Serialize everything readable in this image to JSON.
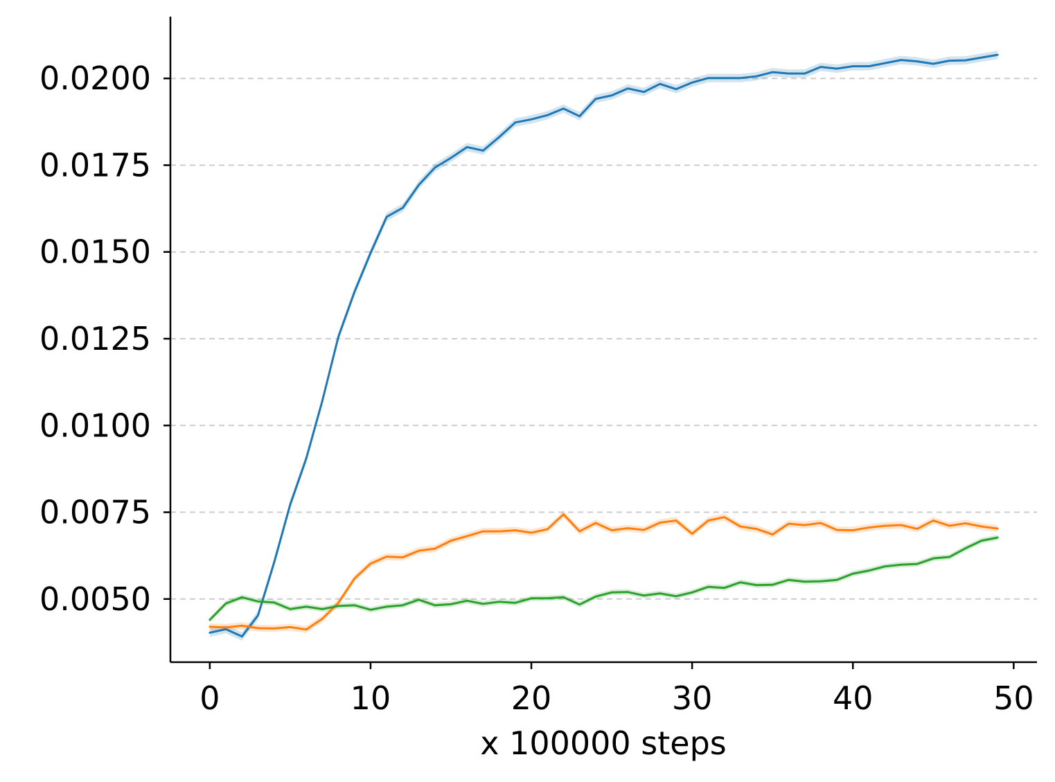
{
  "chart_data": {
    "type": "line",
    "title": "",
    "xlabel": "x 100000 steps",
    "ylabel": "",
    "xlim": [
      -2.45,
      51.45
    ],
    "ylim": [
      0.00318,
      0.02178
    ],
    "xticks": [
      0,
      10,
      20,
      30,
      40,
      50
    ],
    "xtick_labels": [
      "0",
      "10",
      "20",
      "30",
      "40",
      "50"
    ],
    "yticks": [
      0.005,
      0.0075,
      0.01,
      0.0125,
      0.015,
      0.0175,
      0.02
    ],
    "ytick_labels": [
      "0.0050",
      "0.0075",
      "0.0100",
      "0.0125",
      "0.0150",
      "0.0175",
      "0.0200"
    ],
    "grid": "horizontal dashed",
    "legend": "none",
    "x": [
      0,
      1,
      2,
      3,
      4,
      5,
      6,
      7,
      8,
      9,
      10,
      11,
      12,
      13,
      14,
      15,
      16,
      17,
      18,
      19,
      20,
      21,
      22,
      23,
      24,
      25,
      26,
      27,
      28,
      29,
      30,
      31,
      32,
      33,
      34,
      35,
      36,
      37,
      38,
      39,
      40,
      41,
      42,
      43,
      44,
      45,
      46,
      47,
      48,
      49
    ],
    "series": [
      {
        "color": "#1f77b4",
        "band_width": 0.00012,
        "values": [
          0.00403,
          0.00413,
          0.00392,
          0.00453,
          0.00605,
          0.00772,
          0.00905,
          0.01071,
          0.01256,
          0.01385,
          0.01497,
          0.01601,
          0.01627,
          0.01693,
          0.01743,
          0.01771,
          0.01802,
          0.01792,
          0.01831,
          0.01873,
          0.01882,
          0.01894,
          0.01913,
          0.01891,
          0.01941,
          0.01951,
          0.01971,
          0.01961,
          0.01984,
          0.01969,
          0.01988,
          0.02001,
          0.02001,
          0.02001,
          0.02006,
          0.02018,
          0.02014,
          0.02014,
          0.02033,
          0.02028,
          0.02035,
          0.02035,
          0.02044,
          0.02053,
          0.02049,
          0.02042,
          0.02051,
          0.02052,
          0.0206,
          0.02068
        ]
      },
      {
        "color": "#ff7f0e",
        "band_width": 0.0001,
        "values": [
          0.0042,
          0.00418,
          0.00423,
          0.00416,
          0.00415,
          0.00419,
          0.00412,
          0.00443,
          0.00489,
          0.00559,
          0.00602,
          0.00622,
          0.0062,
          0.00639,
          0.00645,
          0.00668,
          0.00681,
          0.00695,
          0.00695,
          0.00698,
          0.00691,
          0.00701,
          0.00744,
          0.00695,
          0.00719,
          0.00698,
          0.00704,
          0.00699,
          0.0072,
          0.00726,
          0.00688,
          0.00726,
          0.00736,
          0.00709,
          0.00702,
          0.00686,
          0.00717,
          0.00713,
          0.00719,
          0.00699,
          0.00698,
          0.00706,
          0.00711,
          0.00713,
          0.00702,
          0.00726,
          0.00711,
          0.00718,
          0.00709,
          0.00703
        ]
      },
      {
        "color": "#2ca02c",
        "band_width": 8e-05,
        "values": [
          0.0044,
          0.00487,
          0.00505,
          0.00493,
          0.0049,
          0.00471,
          0.00478,
          0.00471,
          0.0048,
          0.00482,
          0.00469,
          0.00478,
          0.00482,
          0.00498,
          0.00482,
          0.00485,
          0.00495,
          0.00486,
          0.00492,
          0.00489,
          0.00502,
          0.00502,
          0.00505,
          0.00484,
          0.00507,
          0.00519,
          0.0052,
          0.0051,
          0.00516,
          0.00508,
          0.00519,
          0.00535,
          0.00532,
          0.00548,
          0.0054,
          0.00541,
          0.00555,
          0.0055,
          0.00551,
          0.00555,
          0.00573,
          0.00582,
          0.00594,
          0.00599,
          0.00601,
          0.00617,
          0.00621,
          0.00646,
          0.00668,
          0.00677
        ]
      }
    ]
  }
}
